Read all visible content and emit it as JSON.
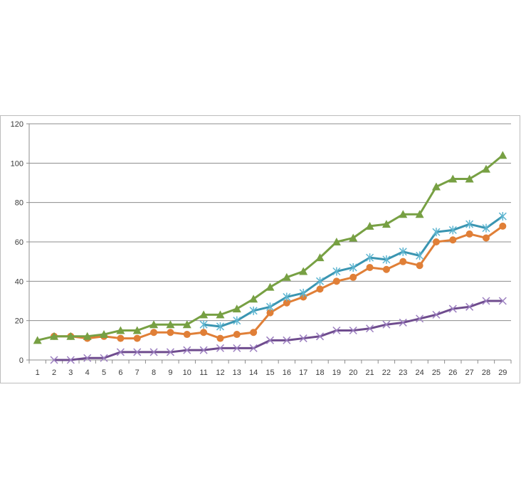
{
  "chart_data": {
    "type": "line",
    "title": "",
    "xlabel": "",
    "ylabel": "",
    "x": [
      1,
      2,
      3,
      4,
      5,
      6,
      7,
      8,
      9,
      10,
      11,
      12,
      13,
      14,
      15,
      16,
      17,
      18,
      19,
      20,
      21,
      22,
      23,
      24,
      25,
      26,
      27,
      28,
      29
    ],
    "ylim": [
      0,
      120
    ],
    "yticks": [
      0,
      20,
      40,
      60,
      80,
      100,
      120
    ],
    "grid": true,
    "legend": "none",
    "series": [
      {
        "marker": "triangle",
        "color": "#77A043",
        "x": [
          1,
          2,
          3,
          4,
          5,
          6,
          7,
          8,
          9,
          10,
          11,
          12,
          13,
          14,
          15,
          16,
          17,
          18,
          19,
          20,
          21,
          22,
          23,
          24,
          25,
          26,
          27,
          28,
          29
        ],
        "values": [
          10,
          12,
          12,
          12,
          13,
          15,
          15,
          18,
          18,
          18,
          23,
          23,
          26,
          31,
          37,
          42,
          45,
          52,
          60,
          62,
          68,
          69,
          74,
          74,
          88,
          92,
          92,
          97,
          104
        ]
      },
      {
        "marker": "star",
        "color": "#3A95B1",
        "x": [
          11,
          12,
          13,
          14,
          15,
          16,
          17,
          18,
          19,
          20,
          21,
          22,
          23,
          24,
          25,
          26,
          27,
          28,
          29
        ],
        "values": [
          18,
          17,
          20,
          25,
          27,
          32,
          34,
          40,
          45,
          47,
          52,
          51,
          55,
          53,
          65,
          66,
          69,
          67,
          73
        ]
      },
      {
        "marker": "circle",
        "color": "#E07F37",
        "x": [
          2,
          3,
          4,
          5,
          6,
          7,
          8,
          9,
          10,
          11,
          12,
          13,
          14,
          15,
          16,
          17,
          18,
          19,
          20,
          21,
          22,
          23,
          24,
          25,
          26,
          27,
          28,
          29
        ],
        "values": [
          12,
          12,
          11,
          12,
          11,
          11,
          14,
          14,
          13,
          14,
          11,
          13,
          14,
          24,
          29,
          32,
          36,
          40,
          42,
          47,
          46,
          50,
          48,
          60,
          61,
          64,
          62,
          68
        ]
      },
      {
        "marker": "x",
        "color": "#6F4C8E",
        "x": [
          2,
          3,
          4,
          5,
          6,
          7,
          8,
          9,
          10,
          11,
          12,
          13,
          14,
          15,
          16,
          17,
          18,
          19,
          20,
          21,
          22,
          23,
          24,
          25,
          26,
          27,
          28,
          29
        ],
        "values": [
          0,
          0,
          1,
          1,
          4,
          4,
          4,
          4,
          5,
          5,
          6,
          6,
          6,
          10,
          10,
          11,
          12,
          15,
          15,
          16,
          18,
          19,
          21,
          23,
          26,
          27,
          30,
          30
        ]
      }
    ]
  }
}
